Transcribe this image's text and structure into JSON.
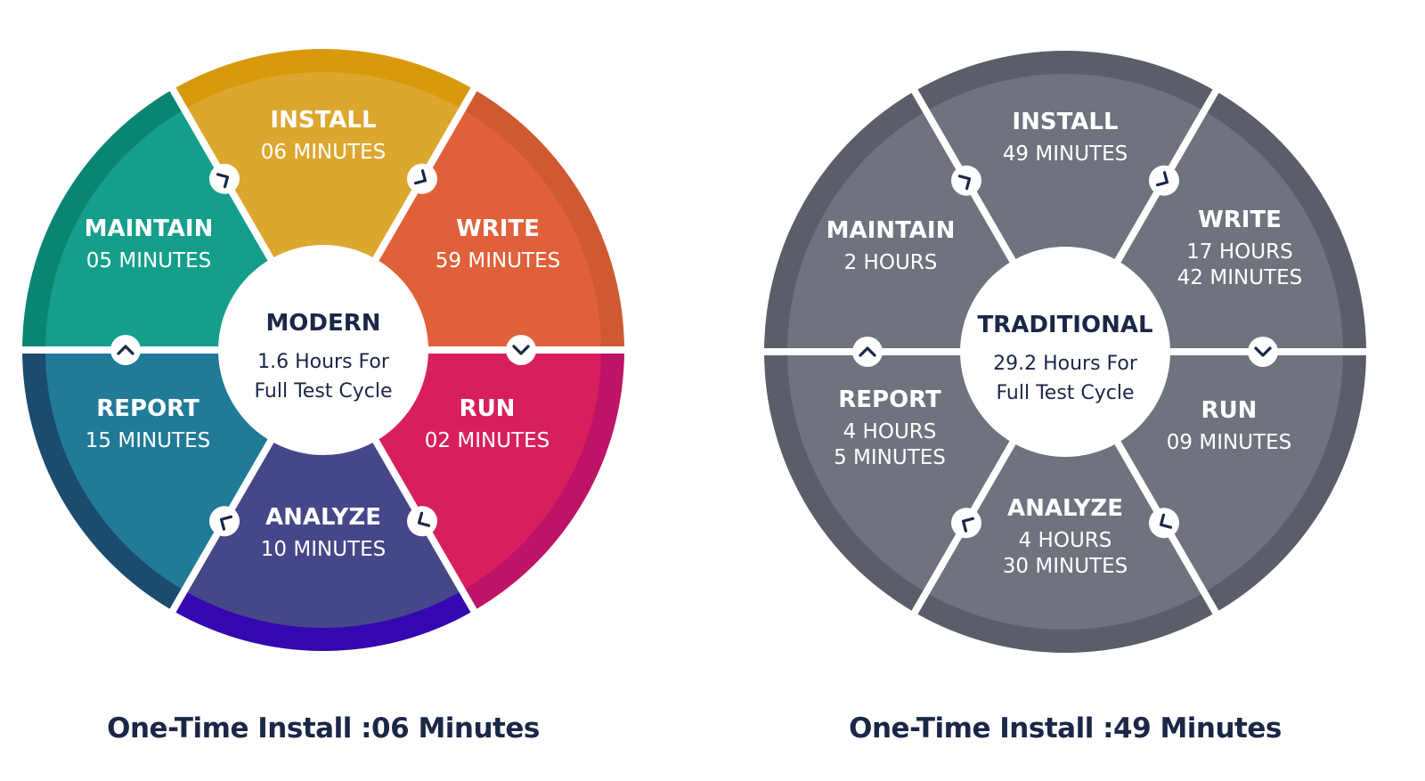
{
  "wheels": [
    {
      "center_title": "MODERN",
      "center_lines": [
        "1.6 Hours For",
        "Full Test Cycle"
      ],
      "caption": "One-Time Install :06 Minutes",
      "segments": [
        {
          "label": "INSTALL",
          "lines": [
            "06 MINUTES"
          ],
          "color": "#DCA72F",
          "band": "#D89A0C"
        },
        {
          "label": "WRITE",
          "lines": [
            "59 MINUTES"
          ],
          "color": "#E0603A",
          "band": "#CF5A32"
        },
        {
          "label": "RUN",
          "lines": [
            "02 MINUTES"
          ],
          "color": "#D81F5E",
          "band": "#BE1467"
        },
        {
          "label": "ANALYZE",
          "lines": [
            "10 MINUTES"
          ],
          "color": "#454788",
          "band": "#3507B0"
        },
        {
          "label": "REPORT",
          "lines": [
            "15 MINUTES"
          ],
          "color": "#217A98",
          "band": "#1B4C6E"
        },
        {
          "label": "MAINTAIN",
          "lines": [
            "05 MINUTES"
          ],
          "color": "#159F8A",
          "band": "#0A8574"
        }
      ]
    },
    {
      "center_title": "TRADITIONAL",
      "center_lines": [
        "29.2 Hours For",
        "Full Test Cycle"
      ],
      "caption": "One-Time Install :49 Minutes",
      "segments": [
        {
          "label": "INSTALL",
          "lines": [
            "49 MINUTES"
          ],
          "color": "#6E737E",
          "band": "#5B5E69"
        },
        {
          "label": "WRITE",
          "lines": [
            "17 HOURS",
            "42 MINUTES"
          ],
          "color": "#6E737E",
          "band": "#5B5E69"
        },
        {
          "label": "RUN",
          "lines": [
            "09 MINUTES"
          ],
          "color": "#6E737E",
          "band": "#5B5E69"
        },
        {
          "label": "ANALYZE",
          "lines": [
            "4 HOURS",
            "30 MINUTES"
          ],
          "color": "#6E737E",
          "band": "#5B5E69"
        },
        {
          "label": "REPORT",
          "lines": [
            "4 HOURS",
            "5 MINUTES"
          ],
          "color": "#6E737E",
          "band": "#5B5E69"
        },
        {
          "label": "MAINTAIN",
          "lines": [
            "2 HOURS"
          ],
          "color": "#6E737E",
          "band": "#5B5E69"
        }
      ]
    }
  ],
  "text_color": "#1B2747",
  "arrow_icon": "chevron-clockwise-icon"
}
